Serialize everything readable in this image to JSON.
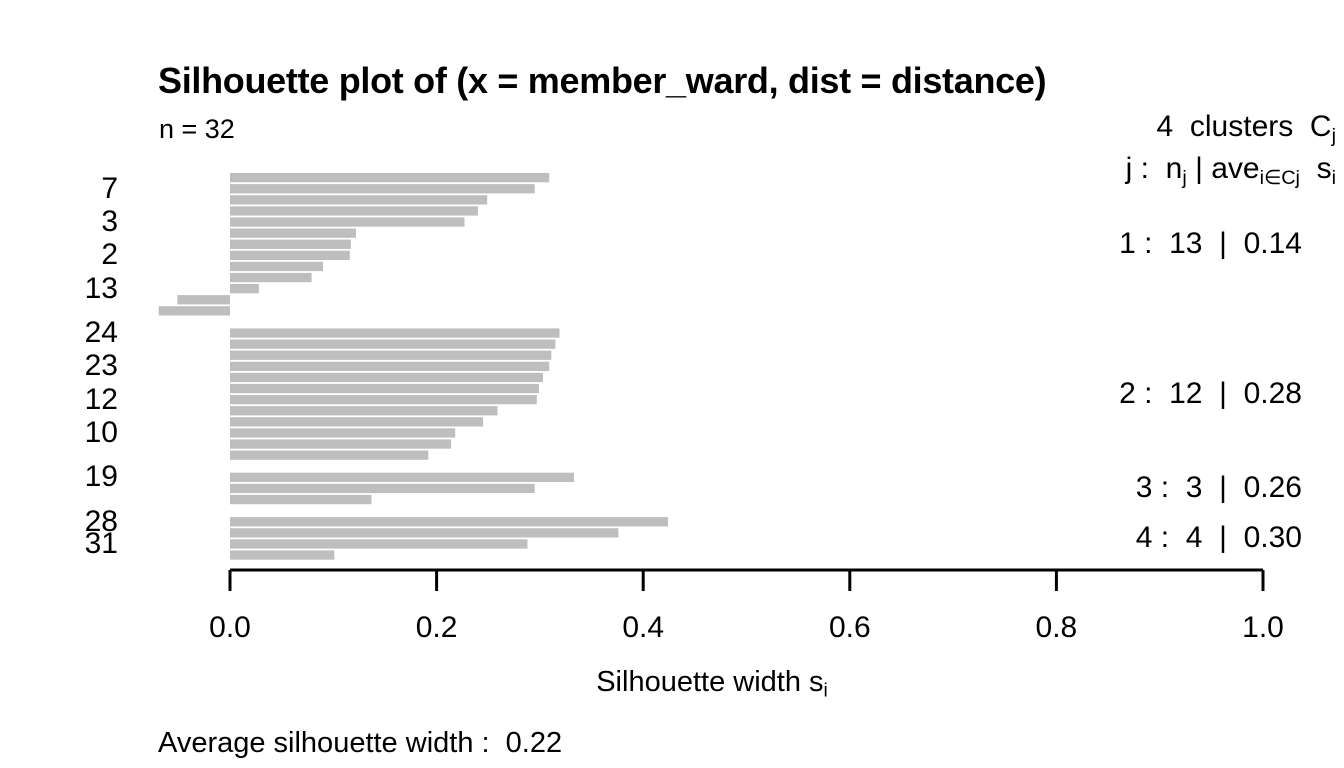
{
  "chart_data": {
    "type": "bar",
    "orientation": "horizontal",
    "title": "Silhouette plot of (x = member_ward, dist = distance)",
    "subtitle": "n = 32",
    "n": 32,
    "n_clusters": 4,
    "xlabel": "Silhouette width s_i",
    "xlabel_rich": [
      {
        "t": "Silhouette width s"
      },
      {
        "sub": "i"
      }
    ],
    "legend_title": "4  clusters  Cj",
    "legend_title_rich": [
      {
        "t": "4  clusters  C"
      },
      {
        "sub": "j"
      }
    ],
    "legend_subtitle": "j :  nj | ave_i∈Cj  si",
    "legend_subtitle_rich": [
      {
        "t": "j :  n"
      },
      {
        "sub": "j"
      },
      {
        "t": " | ave"
      },
      {
        "sub": "i∈Cj"
      },
      {
        "t": "  s"
      },
      {
        "sub": "i"
      }
    ],
    "footer": "Average silhouette width :  0.22",
    "average_silhouette_width": 0.22,
    "axis_range": [
      0,
      1
    ],
    "xticks": [
      0,
      0.2,
      0.4,
      0.6,
      0.8,
      1.0
    ],
    "xtick_labels": [
      "0.0",
      "0.2",
      "0.4",
      "0.6",
      "0.8",
      "1.0"
    ],
    "grid": false,
    "bar_color": "#bebebe",
    "axis_color": "#000000",
    "legend_position": "top-right",
    "clusters": [
      {
        "j": 1,
        "size": 13,
        "ave_si": "0.14",
        "summary": "1 :  13  |  0.14",
        "values": [
          0.309,
          0.295,
          0.249,
          0.24,
          0.227,
          0.122,
          0.117,
          0.116,
          0.09,
          0.079,
          0.028,
          -0.051,
          -0.069
        ]
      },
      {
        "j": 2,
        "size": 12,
        "ave_si": "0.28",
        "summary": "2 :  12  |  0.28",
        "values": [
          0.319,
          0.315,
          0.311,
          0.309,
          0.303,
          0.299,
          0.297,
          0.259,
          0.245,
          0.218,
          0.214,
          0.192
        ]
      },
      {
        "j": 3,
        "size": 3,
        "ave_si": "0.26",
        "summary": "3 :  3  |  0.26",
        "values": [
          0.333,
          0.295,
          0.137
        ]
      },
      {
        "j": 4,
        "size": 4,
        "ave_si": "0.30",
        "summary": "4 :  4  |  0.30",
        "values": [
          0.424,
          0.376,
          0.288,
          0.101
        ]
      }
    ],
    "row_labels": [
      {
        "text": "7",
        "row": 1
      },
      {
        "text": "3",
        "row": 4
      },
      {
        "text": "2",
        "row": 7
      },
      {
        "text": "13",
        "row": 10
      },
      {
        "text": "24",
        "row": 14
      },
      {
        "text": "23",
        "row": 17
      },
      {
        "text": "12",
        "row": 20
      },
      {
        "text": "10",
        "row": 23
      },
      {
        "text": "19",
        "row": 27
      },
      {
        "text": "28",
        "row": 31
      },
      {
        "text": "31",
        "row": 33
      }
    ]
  }
}
